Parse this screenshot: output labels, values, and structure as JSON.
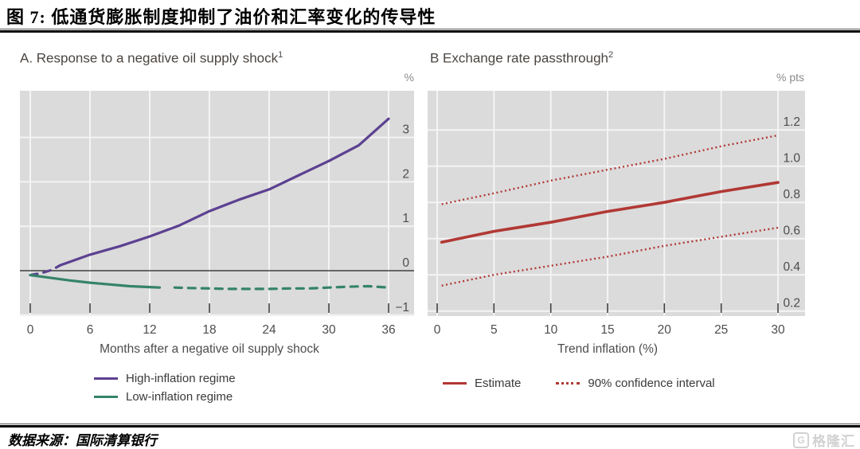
{
  "header": {
    "title": "图 7: 低通货膨胀制度抑制了油价和汇率变化的传导性"
  },
  "footer": {
    "source": "数据来源：国际清算银行",
    "logo_mark": "G",
    "logo_text": "格隆汇"
  },
  "colors": {
    "plot_bg": "#dbdbdb",
    "grid": "#f4f4f4",
    "zero_line": "#3f3f3f",
    "axis_text": "#4d4d4d",
    "panel_title_text": "#4b4540",
    "purple": "#5c4191",
    "green": "#35836a",
    "red": "#b13834"
  },
  "chart_data": [
    {
      "type": "line",
      "title": "A. Response to a negative oil supply shock",
      "title_superscript": "1",
      "unit_label": "%",
      "xlabel": "Months after a negative oil supply shock",
      "xlim": [
        -1,
        38.5
      ],
      "ylim": [
        -1.02,
        4.06
      ],
      "grid": true,
      "zero_line_at": 0,
      "x_ticks": [
        0,
        6,
        12,
        18,
        24,
        30,
        36
      ],
      "x_tick_labels": [
        "0",
        "6",
        "12",
        "18",
        "24",
        "30",
        "36"
      ],
      "y_ticks": [
        3,
        2,
        1,
        0,
        -1
      ],
      "y_tick_labels": [
        "3",
        "2",
        "1",
        "0",
        "−1"
      ],
      "legend_position": "bottom-left",
      "legend": [
        {
          "label": "High-inflation regime",
          "color": "#5c4191",
          "style": "solid"
        },
        {
          "label": "Low-inflation regime",
          "color": "#35836a",
          "style": "solid"
        }
      ],
      "series": [
        {
          "name": "High-inflation regime early insignificant",
          "color": "#5c4191",
          "style": "dashed",
          "x": [
            0,
            1.2,
            2.2,
            3
          ],
          "y": [
            -0.1,
            -0.05,
            0.02,
            0.12
          ]
        },
        {
          "name": "High-inflation regime",
          "color": "#5c4191",
          "style": "solid",
          "x": [
            3,
            6,
            9,
            12,
            15,
            18,
            21,
            24,
            27,
            30,
            33,
            36
          ],
          "y": [
            0.12,
            0.36,
            0.55,
            0.77,
            1.02,
            1.34,
            1.6,
            1.83,
            2.15,
            2.47,
            2.82,
            3.42
          ]
        },
        {
          "name": "Low-inflation regime",
          "color": "#35836a",
          "style": "solid",
          "x": [
            0,
            2,
            4,
            6,
            8,
            10,
            12,
            13
          ],
          "y": [
            -0.1,
            -0.16,
            -0.22,
            -0.27,
            -0.31,
            -0.35,
            -0.37,
            -0.38
          ]
        },
        {
          "name": "Low-inflation regime later insignificant",
          "color": "#35836a",
          "style": "dashed",
          "x": [
            14.5,
            16,
            18,
            20,
            22,
            24,
            26,
            28,
            30,
            32,
            34,
            36
          ],
          "y": [
            -0.38,
            -0.39,
            -0.4,
            -0.41,
            -0.41,
            -0.41,
            -0.4,
            -0.4,
            -0.38,
            -0.36,
            -0.35,
            -0.38
          ]
        }
      ]
    },
    {
      "type": "line",
      "title": "B Exchange rate passthrough",
      "title_superscript": "2",
      "unit_label": "% pts",
      "xlabel": "Trend inflation (%)",
      "xlim": [
        -0.8,
        32.4
      ],
      "ylim": [
        0.17,
        1.42
      ],
      "grid": true,
      "x_ticks": [
        0,
        5,
        10,
        15,
        20,
        25,
        30
      ],
      "x_tick_labels": [
        "0",
        "5",
        "10",
        "15",
        "20",
        "25",
        "30"
      ],
      "y_ticks": [
        1.2,
        1.0,
        0.8,
        0.6,
        0.4,
        0.2
      ],
      "y_tick_labels": [
        "1.2",
        "1.0",
        "0.8",
        "0.6",
        "0.4",
        "0.2"
      ],
      "legend_position": "bottom",
      "legend": [
        {
          "label": "Estimate",
          "color": "#b13834",
          "style": "solid"
        },
        {
          "label": "90% confidence interval",
          "color": "#b13834",
          "style": "dotted"
        }
      ],
      "series": [
        {
          "name": "90% confidence interval upper",
          "color": "#b13834",
          "style": "dotted",
          "x": [
            0.4,
            5,
            10,
            15,
            20,
            25,
            30
          ],
          "y": [
            0.79,
            0.85,
            0.92,
            0.98,
            1.04,
            1.11,
            1.17
          ]
        },
        {
          "name": "Estimate",
          "color": "#b13834",
          "style": "solid",
          "width": 3.6,
          "x": [
            0.4,
            5,
            10,
            15,
            20,
            25,
            30
          ],
          "y": [
            0.58,
            0.64,
            0.69,
            0.75,
            0.8,
            0.86,
            0.91
          ]
        },
        {
          "name": "90% confidence interval lower",
          "color": "#b13834",
          "style": "dotted",
          "x": [
            0.4,
            5,
            10,
            15,
            20,
            25,
            30
          ],
          "y": [
            0.34,
            0.4,
            0.45,
            0.5,
            0.56,
            0.61,
            0.66
          ]
        }
      ]
    }
  ]
}
